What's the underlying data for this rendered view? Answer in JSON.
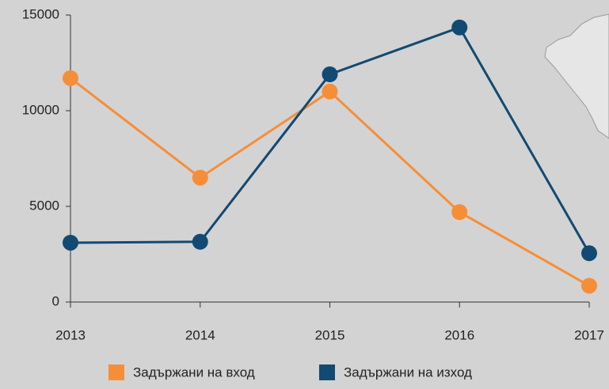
{
  "chart_data": {
    "type": "line",
    "categories": [
      "2013",
      "2014",
      "2015",
      "2016",
      "2017"
    ],
    "series": [
      {
        "name": "Задържани на вход",
        "color": "#f68e37",
        "values": [
          11700,
          6500,
          11000,
          4700,
          850
        ]
      },
      {
        "name": "Задържани на изход",
        "color": "#114a72",
        "values": [
          3100,
          3150,
          11900,
          14350,
          2550
        ]
      }
    ],
    "ylim": [
      0,
      15000
    ],
    "yticks": [
      0,
      5000,
      10000,
      15000
    ],
    "grid": false,
    "legend": "bottom"
  }
}
